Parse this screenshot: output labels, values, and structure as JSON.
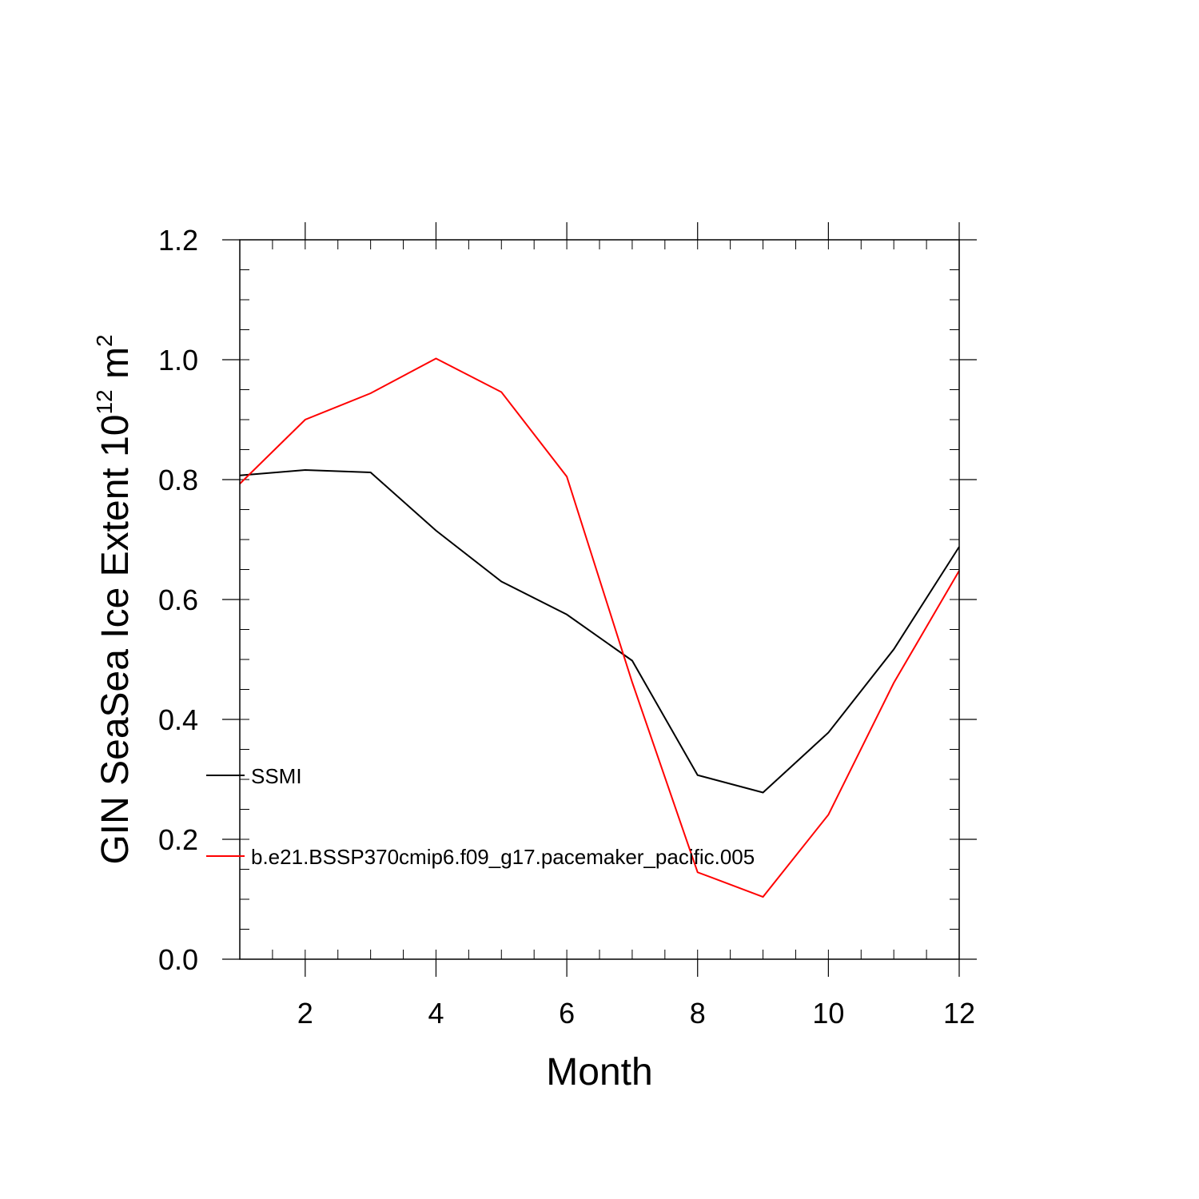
{
  "chart_data": {
    "type": "line",
    "xlabel": "Month",
    "ylabel_main": "GIN SeaSea Ice Extent 10",
    "ylabel_exp": "12",
    "ylabel_unit": " m",
    "ylabel_unit_exp": "2",
    "xlim": [
      1,
      12
    ],
    "ylim": [
      0,
      1.2
    ],
    "x_ticks": [
      2,
      4,
      6,
      8,
      10,
      12
    ],
    "x_tick_labels": [
      "2",
      "4",
      "6",
      "8",
      "10",
      "12"
    ],
    "y_ticks": [
      0,
      0.2,
      0.4,
      0.6,
      0.8,
      1.0,
      1.2
    ],
    "y_tick_labels": [
      "0.0",
      "0.2",
      "0.4",
      "0.6",
      "0.8",
      "1.0",
      "1.2"
    ],
    "grid": false,
    "legend_position": "left-inside",
    "x": [
      1,
      2,
      3,
      4,
      5,
      6,
      7,
      8,
      9,
      10,
      11,
      12
    ],
    "series": [
      {
        "name": "SSMI",
        "color": "#000000",
        "values": [
          0.807,
          0.816,
          0.812,
          0.715,
          0.63,
          0.575,
          0.498,
          0.307,
          0.278,
          0.378,
          0.517,
          0.688
        ]
      },
      {
        "name": "b.e21.BSSP370cmip6.f09_g17.pacemaker_pacific.005",
        "color": "#ff0000",
        "values": [
          0.793,
          0.9,
          0.944,
          1.002,
          0.946,
          0.805,
          0.462,
          0.145,
          0.104,
          0.241,
          0.461,
          0.648
        ]
      }
    ]
  }
}
